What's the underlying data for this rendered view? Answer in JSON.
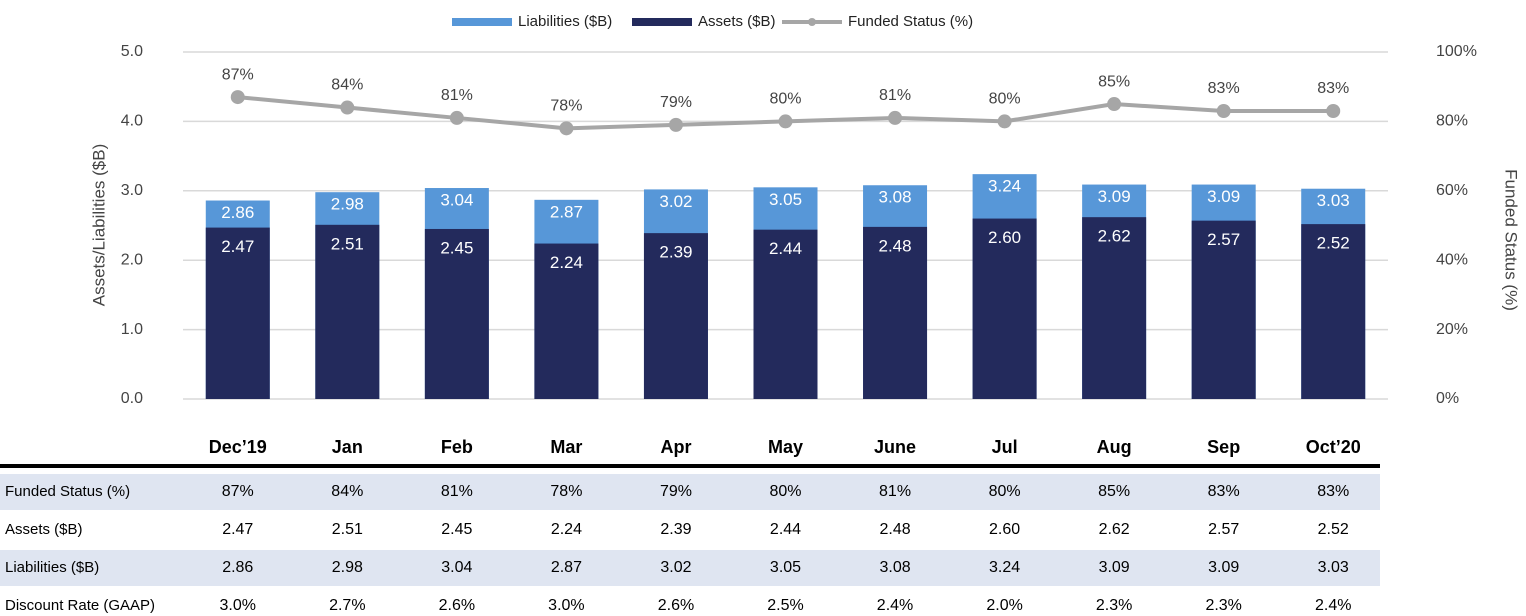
{
  "chart_data": {
    "type": "bar-line",
    "categories": [
      "Dec’19",
      "Jan",
      "Feb",
      "Mar",
      "Apr",
      "May",
      "June",
      "Jul",
      "Aug",
      "Sep",
      "Oct’20"
    ],
    "ylabel": "Assets/Liabilities ($B)",
    "y2label": "Funded Status (%)",
    "ylim": [
      0,
      5
    ],
    "yticks": [
      {
        "value": 0,
        "label": "0.0"
      },
      {
        "value": 1,
        "label": "1.0"
      },
      {
        "value": 2,
        "label": "2.0"
      },
      {
        "value": 3,
        "label": "3.0"
      },
      {
        "value": 4,
        "label": "4.0"
      },
      {
        "value": 5,
        "label": "5.0"
      }
    ],
    "y2lim": [
      0,
      100
    ],
    "y2ticks": [
      {
        "value": 0,
        "label": "0%"
      },
      {
        "value": 20,
        "label": "20%"
      },
      {
        "value": 40,
        "label": "40%"
      },
      {
        "value": 60,
        "label": "60%"
      },
      {
        "value": 80,
        "label": "80%"
      },
      {
        "value": 100,
        "label": "100%"
      }
    ],
    "grid": true,
    "legend": "top",
    "series": [
      {
        "name": "Liabilities ($B)",
        "color": "#5797d8",
        "kind": "bar",
        "values": [
          2.86,
          2.98,
          3.04,
          2.87,
          3.02,
          3.05,
          3.08,
          3.24,
          3.09,
          3.09,
          3.03
        ]
      },
      {
        "name": "Assets ($B)",
        "color": "#232a5c",
        "kind": "bar",
        "values": [
          2.47,
          2.51,
          2.45,
          2.24,
          2.39,
          2.44,
          2.48,
          2.6,
          2.62,
          2.57,
          2.52
        ],
        "value_labels": [
          "2.47",
          "2.51",
          "2.45",
          "2.24",
          "2.39",
          "2.44",
          "2.48",
          "2.60",
          "2.62",
          "2.57",
          "2.52"
        ]
      },
      {
        "name": "Funded Status (%)",
        "color": "#a6a6a6",
        "kind": "line",
        "axis": "y2",
        "values": [
          87,
          84,
          81,
          78,
          79,
          80,
          81,
          80,
          85,
          83,
          83
        ],
        "value_labels": [
          "87%",
          "84%",
          "81%",
          "78%",
          "79%",
          "80%",
          "81%",
          "80%",
          "85%",
          "83%",
          "83%"
        ]
      }
    ]
  },
  "table": {
    "rows": [
      {
        "label": "Funded Status (%)",
        "cells": [
          "87%",
          "84%",
          "81%",
          "78%",
          "79%",
          "80%",
          "81%",
          "80%",
          "85%",
          "83%",
          "83%"
        ]
      },
      {
        "label": "Assets ($B)",
        "cells": [
          "2.47",
          "2.51",
          "2.45",
          "2.24",
          "2.39",
          "2.44",
          "2.48",
          "2.60",
          "2.62",
          "2.57",
          "2.52"
        ]
      },
      {
        "label": "Liabilities ($B)",
        "cells": [
          "2.86",
          "2.98",
          "3.04",
          "2.87",
          "3.02",
          "3.05",
          "3.08",
          "3.24",
          "3.09",
          "3.09",
          "3.03"
        ]
      },
      {
        "label": "Discount Rate (GAAP)",
        "cells": [
          "3.0%",
          "2.7%",
          "2.6%",
          "3.0%",
          "2.6%",
          "2.5%",
          "2.4%",
          "2.0%",
          "2.3%",
          "2.3%",
          "2.4%"
        ]
      }
    ]
  }
}
